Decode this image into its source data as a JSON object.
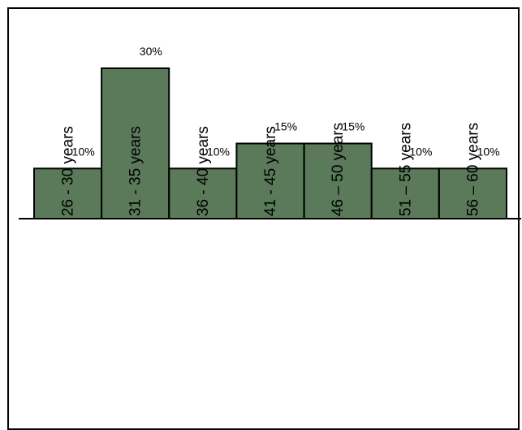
{
  "chart_data": {
    "type": "bar",
    "title": "",
    "xlabel": "",
    "ylabel": "",
    "categories": [
      "26 - 30 years",
      "31 - 35 years",
      "36 - 40 years",
      "41 - 45 years",
      "46 – 50 years",
      "51 – 55 years",
      "56 – 60 years"
    ],
    "values": [
      10,
      30,
      10,
      15,
      15,
      10,
      10
    ],
    "value_labels": [
      "10%",
      "30%",
      "10%",
      "15%",
      "15%",
      "10%",
      "10%"
    ],
    "ylim": [
      0,
      30
    ],
    "grid": false,
    "legend": "none",
    "colors": {
      "bar_fill": "#5a7a5a",
      "bar_stroke": "#000000",
      "frame": "#000000"
    }
  }
}
